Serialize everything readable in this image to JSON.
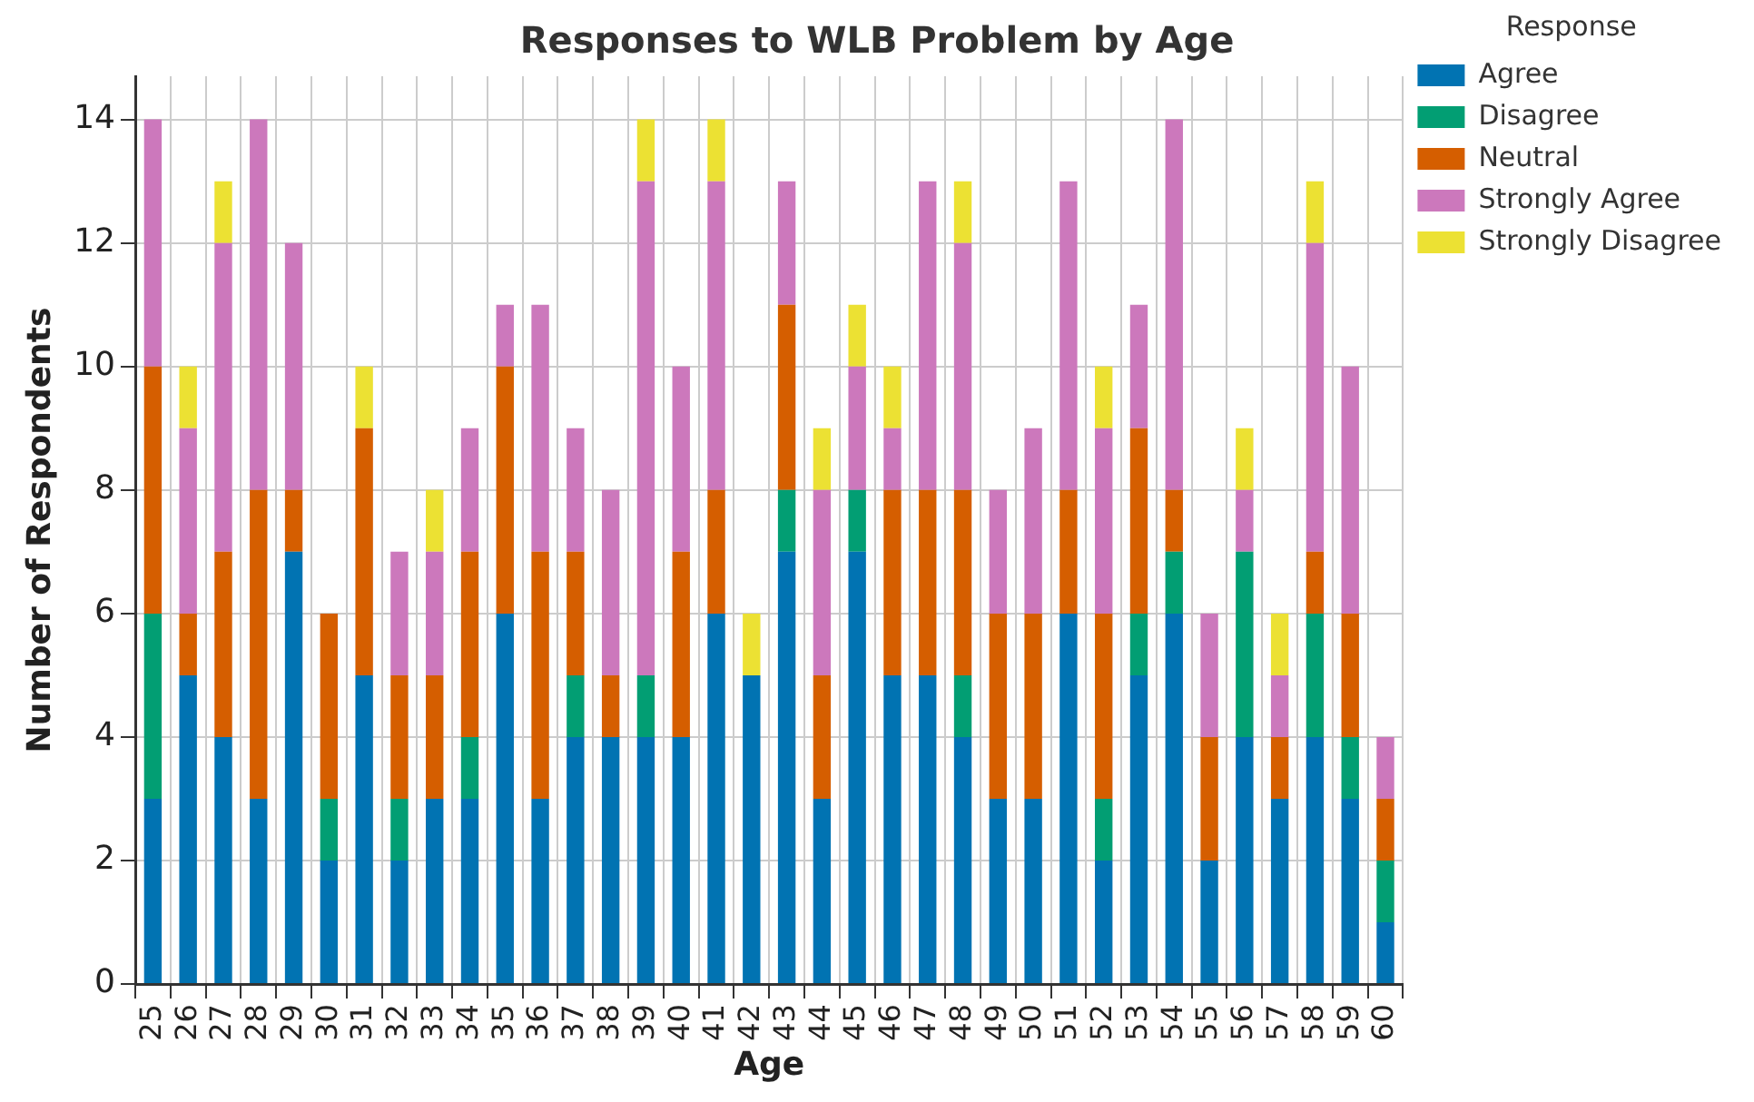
{
  "chart_data": {
    "type": "bar",
    "title": "Responses to WLB Problem by Age",
    "xlabel": "Age",
    "ylabel": "Number of Respondents",
    "legend_title": "Response",
    "categories": [
      "25",
      "26",
      "27",
      "28",
      "29",
      "30",
      "31",
      "32",
      "33",
      "34",
      "35",
      "36",
      "37",
      "38",
      "39",
      "40",
      "41",
      "42",
      "43",
      "44",
      "45",
      "46",
      "47",
      "48",
      "49",
      "50",
      "51",
      "52",
      "53",
      "54",
      "55",
      "56",
      "57",
      "58",
      "59",
      "60"
    ],
    "stacked": true,
    "ylim": [
      0,
      14.7
    ],
    "yticks": [
      0,
      2,
      4,
      6,
      8,
      10,
      12,
      14
    ],
    "grid": true,
    "legend": "top right",
    "series": [
      {
        "name": "Agree",
        "color": "#0173b2",
        "values": [
          3,
          5,
          4,
          3,
          7,
          2,
          5,
          2,
          3,
          3,
          6,
          3,
          4,
          4,
          4,
          4,
          6,
          5,
          7,
          3,
          7,
          5,
          5,
          4,
          3,
          3,
          6,
          2,
          5,
          6,
          2,
          4,
          3,
          4,
          3,
          1
        ]
      },
      {
        "name": "Disagree",
        "color": "#029e73",
        "values": [
          3,
          0,
          0,
          0,
          0,
          1,
          0,
          1,
          0,
          1,
          0,
          0,
          1,
          0,
          1,
          0,
          0,
          0,
          1,
          0,
          1,
          0,
          0,
          1,
          0,
          0,
          0,
          1,
          1,
          1,
          0,
          3,
          0,
          2,
          1,
          1
        ]
      },
      {
        "name": "Neutral",
        "color": "#d55e00",
        "values": [
          4,
          1,
          3,
          5,
          1,
          3,
          4,
          2,
          2,
          3,
          4,
          4,
          2,
          1,
          0,
          3,
          2,
          0,
          3,
          2,
          0,
          3,
          3,
          3,
          3,
          3,
          2,
          3,
          3,
          1,
          2,
          0,
          1,
          1,
          2,
          1
        ]
      },
      {
        "name": "Strongly Agree",
        "color": "#cc78bc",
        "values": [
          4,
          3,
          5,
          6,
          4,
          0,
          0,
          2,
          2,
          2,
          1,
          4,
          2,
          3,
          8,
          3,
          5,
          0,
          2,
          3,
          2,
          1,
          5,
          4,
          2,
          3,
          5,
          3,
          2,
          6,
          2,
          1,
          1,
          5,
          4,
          1
        ]
      },
      {
        "name": "Strongly Disagree",
        "color": "#ece133",
        "values": [
          0,
          1,
          1,
          0,
          0,
          0,
          1,
          0,
          1,
          0,
          0,
          0,
          0,
          0,
          1,
          0,
          1,
          1,
          0,
          1,
          1,
          1,
          0,
          1,
          0,
          0,
          0,
          1,
          0,
          0,
          0,
          1,
          1,
          1,
          0,
          0
        ]
      }
    ]
  }
}
